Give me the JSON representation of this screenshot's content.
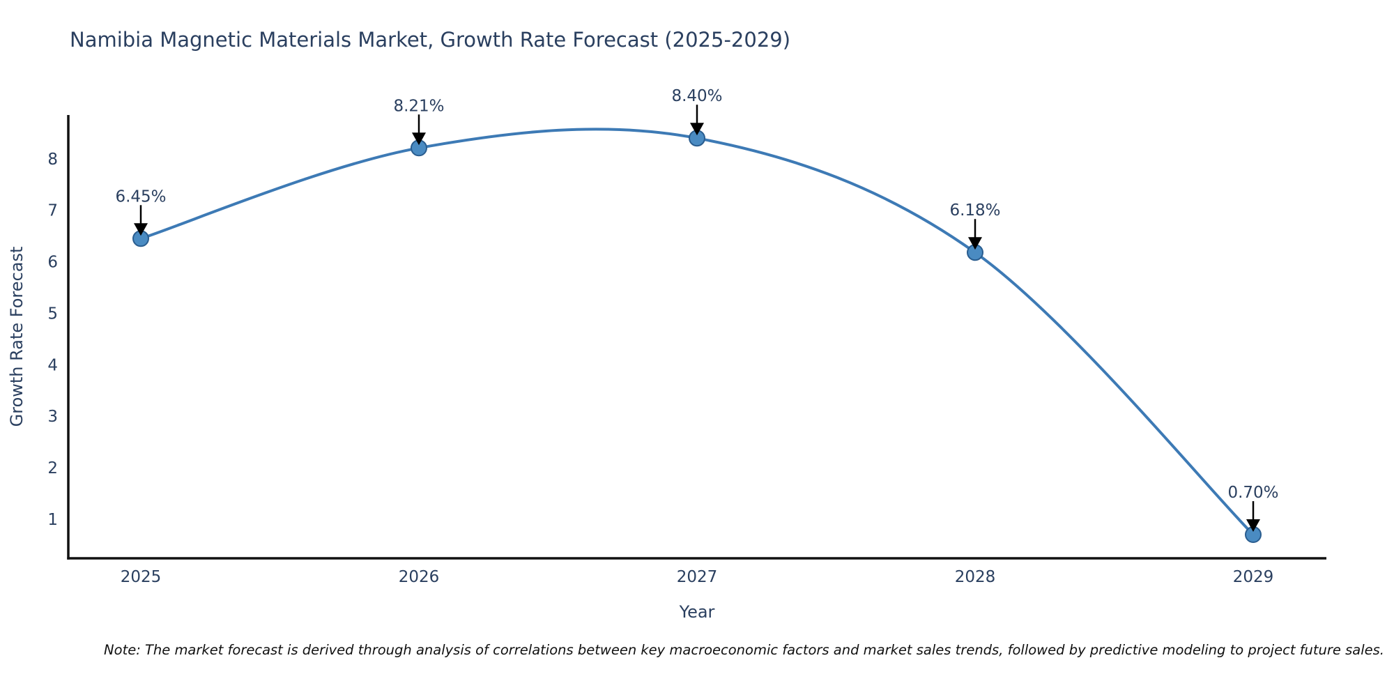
{
  "title": "Namibia Magnetic Materials Market, Growth Rate Forecast (2025-2029)",
  "note": "Note: The market forecast is derived through analysis of correlations between key macroeconomic factors and market sales trends, followed by predictive modeling to project future sales.",
  "chart_data": {
    "type": "line",
    "title": "Namibia Magnetic Materials Market, Growth Rate Forecast (2025-2029)",
    "xlabel": "Year",
    "ylabel": "Growth Rate Forecast",
    "x": [
      2025,
      2026,
      2027,
      2028,
      2029
    ],
    "values": [
      6.45,
      8.21,
      8.4,
      6.18,
      0.7
    ],
    "point_labels": [
      "6.45%",
      "8.21%",
      "8.40%",
      "6.18%",
      "0.70%"
    ],
    "x_tick_labels": [
      "2025",
      "2026",
      "2027",
      "2028",
      "2029"
    ],
    "y_ticks": [
      1,
      2,
      3,
      4,
      5,
      6,
      7,
      8
    ],
    "ylim": [
      0.24,
      8.85
    ],
    "grid": false,
    "legend": false,
    "line_shape": "spline",
    "marker": "circle",
    "annotation_arrows": true,
    "colors": {
      "line": "#3d7ab5",
      "marker_fill": "#4a8bc2",
      "marker_stroke": "#2a5d8f",
      "axis_line": "#111111",
      "text": "#2a3f5f",
      "annotation_text": "#2a3f5f",
      "arrow": "#000000",
      "note_text": "#111111",
      "background": "#ffffff"
    }
  }
}
